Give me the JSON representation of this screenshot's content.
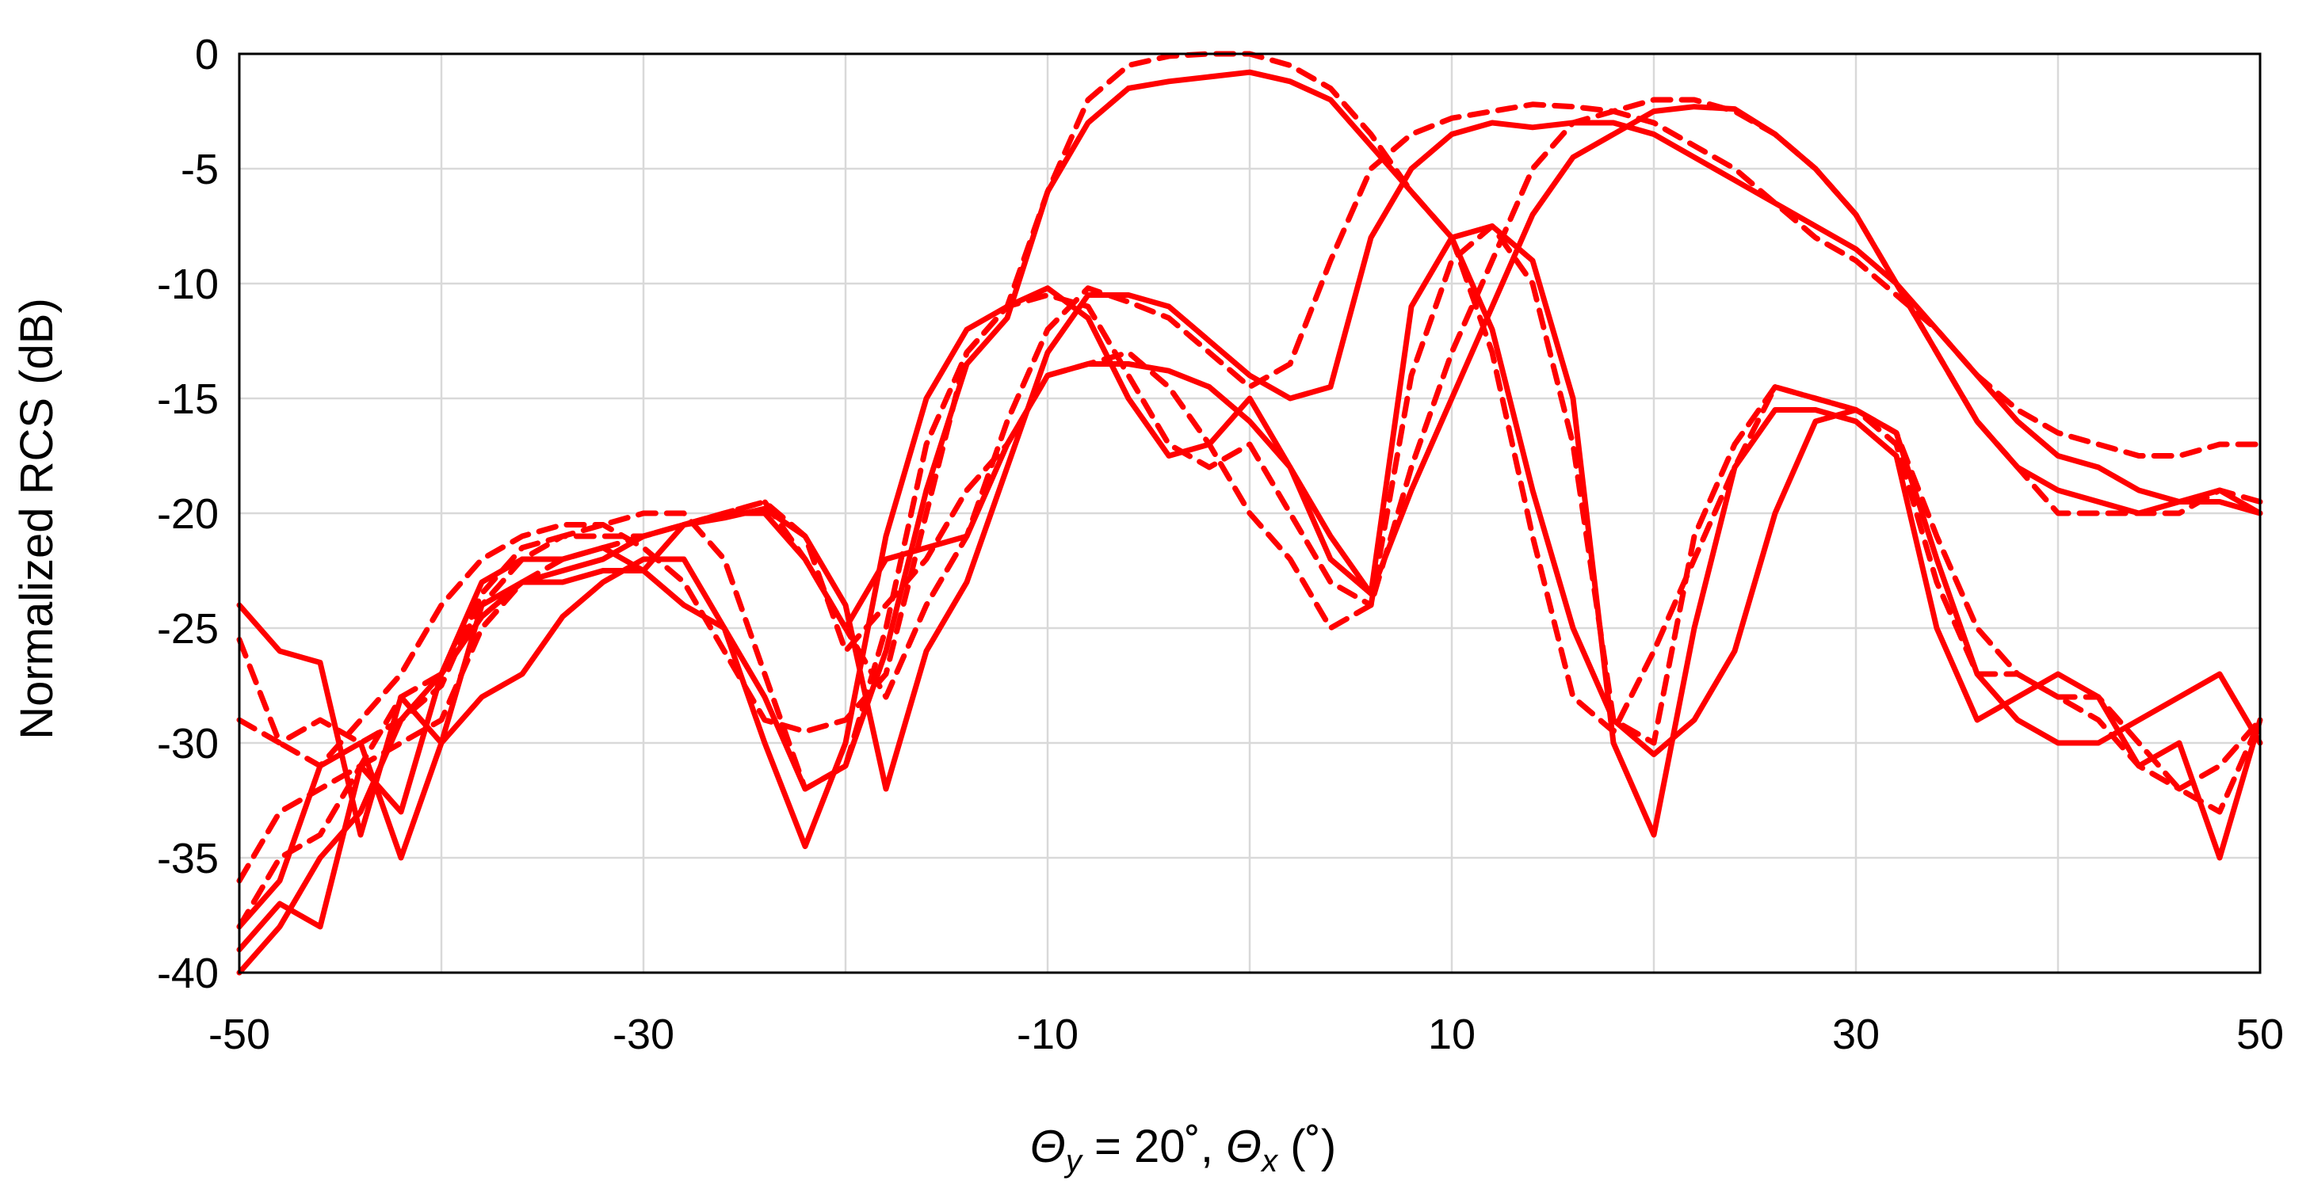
{
  "chart_data": {
    "type": "line",
    "title": "",
    "ylabel": "Normalized RCS (dB)",
    "xlabel_parts": {
      "theta1": "Θ",
      "sub1": "y",
      "mid": " = 20˚, ",
      "theta2": "Θ",
      "sub2": "x",
      "unit": " (˚)"
    },
    "xlim": [
      -50,
      50
    ],
    "ylim": [
      -40,
      0
    ],
    "xticks": [
      -50,
      -30,
      -10,
      10,
      30,
      50
    ],
    "xtick_labels": [
      "-50",
      "-30",
      "-10",
      "10",
      "30",
      "50"
    ],
    "yticks": [
      0,
      -5,
      -10,
      -15,
      -20,
      -25,
      -30,
      -35,
      -40
    ],
    "ytick_labels": [
      "0",
      "-5",
      "-10",
      "-15",
      "-20",
      "-25",
      "-30",
      "-35",
      "-40"
    ],
    "x_gridlines": [
      -50,
      -40,
      -30,
      -20,
      -10,
      0,
      10,
      20,
      30,
      40,
      50
    ],
    "y_gridlines": [
      0,
      -5,
      -10,
      -15,
      -20,
      -25,
      -30,
      -35,
      -40
    ],
    "grid": true,
    "legend": "none",
    "color": "#ff0000",
    "series": [
      {
        "style": "solid",
        "x": [
          -50,
          -48,
          -46,
          -44,
          -42,
          -40,
          -38,
          -36,
          -34,
          -32,
          -30,
          -28,
          -26,
          -24,
          -22,
          -20,
          -18,
          -16,
          -14,
          -12,
          -10,
          -8,
          -6,
          -4,
          -2,
          0,
          2,
          4,
          6,
          8,
          10,
          12,
          14,
          16,
          18,
          20,
          22,
          24,
          26,
          28,
          30,
          32,
          34,
          36,
          38,
          40,
          42,
          44,
          46,
          48,
          50
        ],
        "y": [
          -39,
          -37,
          -38,
          -31,
          -33,
          -27,
          -23,
          -22,
          -22,
          -21.5,
          -22.5,
          -24,
          -25,
          -30,
          -34.5,
          -30,
          -21,
          -15,
          -12,
          -11,
          -10.2,
          -11.5,
          -15,
          -17.5,
          -17,
          -15,
          -18,
          -22,
          -23.5,
          -11,
          -8,
          -7.5,
          -9,
          -15,
          -30,
          -34,
          -25,
          -18,
          -15.5,
          -15.5,
          -16,
          -17.5,
          -25,
          -29,
          -28,
          -27,
          -28,
          -31,
          -30,
          -35,
          -29
        ]
      },
      {
        "style": "dashed",
        "x": [
          -50,
          -48,
          -46,
          -44,
          -42,
          -40,
          -38,
          -36,
          -34,
          -32,
          -30,
          -28,
          -26,
          -24,
          -22,
          -20,
          -18,
          -16,
          -14,
          -12,
          -10,
          -8,
          -6,
          -4,
          -2,
          0,
          2,
          4,
          6,
          8,
          10,
          12,
          14,
          16,
          18,
          20,
          22,
          24,
          26,
          28,
          30,
          32,
          34,
          36,
          38,
          40,
          42,
          44,
          46,
          48,
          50
        ],
        "y": [
          -38,
          -35,
          -34,
          -31,
          -28,
          -27,
          -24,
          -22,
          -21,
          -20.5,
          -20,
          -20,
          -22,
          -27,
          -32,
          -31,
          -25,
          -17,
          -13,
          -11,
          -10.5,
          -11,
          -14,
          -17,
          -18,
          -17,
          -20,
          -23,
          -24,
          -14,
          -9,
          -7.5,
          -10,
          -17,
          -29,
          -30,
          -21,
          -17,
          -14.5,
          -15,
          -15.5,
          -17,
          -23,
          -27,
          -27,
          -28,
          -28,
          -30,
          -32,
          -33,
          -29
        ]
      },
      {
        "style": "solid",
        "x": [
          -50,
          -48,
          -46,
          -44,
          -42,
          -40,
          -38,
          -36,
          -34,
          -32,
          -30,
          -28,
          -26,
          -24,
          -22,
          -20,
          -18,
          -16,
          -14,
          -12,
          -10,
          -8,
          -6,
          -4,
          -2,
          0,
          2,
          4,
          6,
          8,
          10,
          12,
          14,
          16,
          18,
          20,
          22,
          24,
          26,
          28,
          30,
          32,
          34,
          36,
          38,
          40,
          42,
          44,
          46,
          48,
          50
        ],
        "y": [
          -24,
          -26,
          -26.5,
          -34,
          -28,
          -30,
          -28,
          -27,
          -24.5,
          -23,
          -22,
          -22,
          -25,
          -28,
          -32,
          -31,
          -26,
          -19,
          -13.5,
          -11.5,
          -6,
          -3,
          -1.5,
          -1.2,
          -1,
          -0.8,
          -1.2,
          -2,
          -4,
          -6,
          -8,
          -12,
          -19,
          -25,
          -29,
          -30.5,
          -29,
          -26,
          -20,
          -16,
          -15.5,
          -16.5,
          -22,
          -27,
          -29,
          -30,
          -30,
          -29,
          -28,
          -27,
          -30
        ]
      },
      {
        "style": "dashed",
        "x": [
          -50,
          -48,
          -46,
          -44,
          -42,
          -40,
          -38,
          -36,
          -34,
          -32,
          -30,
          -28,
          -26,
          -24,
          -22,
          -20,
          -18,
          -16,
          -14,
          -12,
          -10,
          -8,
          -6,
          -4,
          -2,
          0,
          2,
          4,
          6,
          8,
          10,
          12,
          14,
          16,
          18,
          20,
          22,
          24,
          26,
          28,
          30,
          32,
          34,
          36,
          38,
          40,
          42,
          44,
          46,
          48,
          50
        ],
        "y": [
          -25.5,
          -30,
          -31,
          -29,
          -27,
          -24,
          -22,
          -21,
          -20.5,
          -20.5,
          -21.5,
          -23,
          -26,
          -29,
          -29.5,
          -29,
          -27,
          -20,
          -13,
          -11,
          -6,
          -2,
          -0.5,
          -0.1,
          0,
          0,
          -0.5,
          -1.5,
          -3.5,
          -6,
          -8,
          -13,
          -21,
          -28,
          -29.5,
          -26,
          -22,
          -18,
          -14.5,
          -15,
          -15.5,
          -16.5,
          -21,
          -25,
          -27,
          -28,
          -29,
          -31,
          -32,
          -31,
          -29
        ]
      },
      {
        "style": "solid",
        "x": [
          -50,
          -48,
          -46,
          -44,
          -42,
          -40,
          -38,
          -36,
          -34,
          -32,
          -30,
          -28,
          -26,
          -24,
          -22,
          -20,
          -18,
          -16,
          -14,
          -12,
          -10,
          -8,
          -6,
          -4,
          -2,
          0,
          2,
          4,
          6,
          8,
          10,
          12,
          14,
          16,
          18,
          20,
          22,
          24,
          26,
          28,
          30,
          32,
          34,
          36,
          38,
          40,
          42,
          44,
          46,
          48,
          50
        ],
        "y": [
          -40,
          -38,
          -35,
          -33,
          -29,
          -27,
          -24.5,
          -23,
          -22.5,
          -22,
          -21,
          -20.5,
          -20,
          -20,
          -22,
          -25,
          -22,
          -21.5,
          -21,
          -17,
          -14,
          -13.5,
          -13.5,
          -13.8,
          -14.5,
          -16,
          -18,
          -21,
          -23.5,
          -19,
          -15,
          -11,
          -7,
          -4.5,
          -3.5,
          -2.5,
          -2.3,
          -2.4,
          -3.5,
          -5,
          -7,
          -10,
          -13,
          -16,
          -18,
          -19,
          -19.5,
          -20,
          -19.5,
          -19,
          -20
        ]
      },
      {
        "style": "dashed",
        "x": [
          -50,
          -48,
          -46,
          -44,
          -42,
          -40,
          -38,
          -36,
          -34,
          -32,
          -30,
          -28,
          -26,
          -24,
          -22,
          -20,
          -18,
          -16,
          -14,
          -12,
          -10,
          -8,
          -6,
          -4,
          -2,
          0,
          2,
          4,
          6,
          8,
          10,
          12,
          14,
          16,
          18,
          20,
          22,
          24,
          26,
          28,
          30,
          32,
          34,
          36,
          38,
          40,
          42,
          44,
          46,
          48,
          50
        ],
        "y": [
          -29,
          -30,
          -29,
          -30,
          -29,
          -27.5,
          -23.5,
          -21.5,
          -21,
          -21,
          -21,
          -20.5,
          -20,
          -19.5,
          -21,
          -26,
          -24,
          -22,
          -19,
          -17,
          -14,
          -13.5,
          -13,
          -14.5,
          -17,
          -20,
          -22,
          -25,
          -24,
          -18,
          -13,
          -9,
          -5,
          -3,
          -2.5,
          -2,
          -2,
          -2.5,
          -3.5,
          -5,
          -7,
          -10,
          -13,
          -16,
          -18,
          -20,
          -20,
          -20,
          -20,
          -19,
          -19.5
        ]
      },
      {
        "style": "solid",
        "x": [
          -50,
          -48,
          -46,
          -44,
          -42,
          -40,
          -38,
          -36,
          -34,
          -32,
          -30,
          -28,
          -26,
          -24,
          -22,
          -20,
          -18,
          -16,
          -14,
          -12,
          -10,
          -8,
          -6,
          -4,
          -2,
          0,
          2,
          4,
          6,
          8,
          10,
          12,
          14,
          16,
          18,
          20,
          22,
          24,
          26,
          28,
          30,
          32,
          34,
          36,
          38,
          40,
          42,
          44,
          46,
          48,
          50
        ],
        "y": [
          -38,
          -36,
          -31,
          -30,
          -35,
          -30,
          -24,
          -23,
          -23,
          -22.5,
          -22.5,
          -20.5,
          -20.2,
          -19.8,
          -21,
          -24,
          -32,
          -26,
          -23,
          -18,
          -13,
          -10.5,
          -10.5,
          -11,
          -12.5,
          -14,
          -15,
          -14.5,
          -8,
          -5,
          -3.5,
          -3,
          -3.2,
          -3,
          -3,
          -3.5,
          -4.5,
          -5.5,
          -6.5,
          -7.5,
          -8.5,
          -10,
          -12,
          -14,
          -16,
          -17.5,
          -18,
          -19,
          -19.5,
          -19.5,
          -20
        ]
      },
      {
        "style": "dashed",
        "x": [
          -50,
          -48,
          -46,
          -44,
          -42,
          -40,
          -38,
          -36,
          -34,
          -32,
          -30,
          -28,
          -26,
          -24,
          -22,
          -20,
          -18,
          -16,
          -14,
          -12,
          -10,
          -8,
          -6,
          -4,
          -2,
          0,
          2,
          4,
          6,
          8,
          10,
          12,
          14,
          16,
          18,
          20,
          22,
          24,
          26,
          28,
          30,
          32,
          34,
          36,
          38,
          40,
          42,
          44,
          46,
          48,
          50
        ],
        "y": [
          -36,
          -33,
          -32,
          -31,
          -30,
          -29,
          -25,
          -23,
          -22,
          -21.5,
          -21,
          -20.5,
          -20,
          -19.5,
          -22,
          -25,
          -28,
          -24,
          -21,
          -16,
          -12,
          -10.2,
          -10.8,
          -11.5,
          -13,
          -14.5,
          -13.5,
          -9,
          -5,
          -3.5,
          -2.8,
          -2.5,
          -2.2,
          -2.3,
          -2.5,
          -3,
          -4,
          -5,
          -6.5,
          -8,
          -9,
          -10.5,
          -12,
          -14,
          -15.5,
          -16.5,
          -17,
          -17.5,
          -17.5,
          -17,
          -17
        ]
      }
    ]
  }
}
